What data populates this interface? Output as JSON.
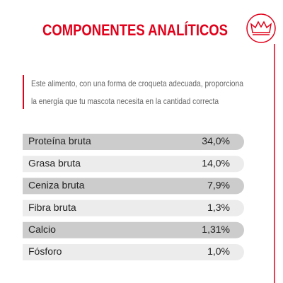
{
  "header": {
    "title": "COMPONENTES ANALÍTICOS"
  },
  "intro": {
    "lines": [
      "Este alimento, con una forma de croqueta adecuada, proporciona",
      "la energía que tu mascota necesita en la cantidad correcta"
    ]
  },
  "table": {
    "rows": [
      [
        "Proteína bruta",
        "34,0%"
      ],
      [
        "Grasa bruta",
        "14,0%"
      ],
      [
        "Ceniza bruta",
        "7,9%"
      ],
      [
        "Fibra bruta",
        "1,3%"
      ],
      [
        "Calcio",
        "1,31%"
      ],
      [
        "Fósforo",
        "1,0%"
      ]
    ]
  }
}
